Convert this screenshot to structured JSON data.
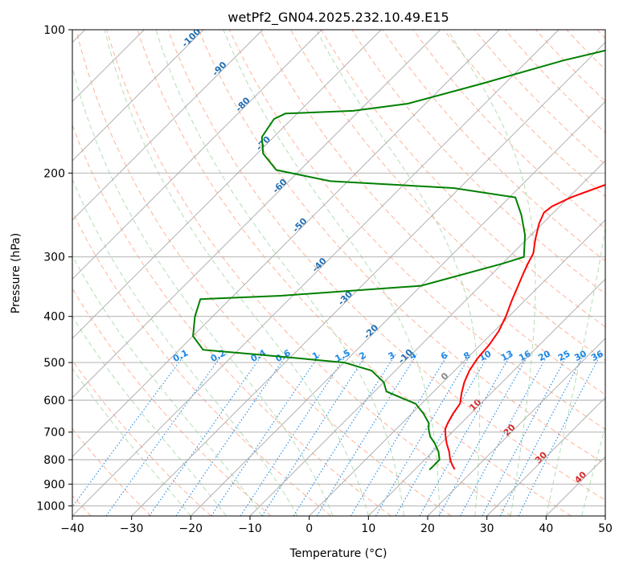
{
  "chart_data": {
    "type": "line",
    "title": "wetPf2_GN04.2025.232.10.49.E15",
    "xlabel": "Temperature (°C)",
    "ylabel": "Pressure (hPa)",
    "xlim": [
      -40,
      50
    ],
    "ylim": [
      1050,
      100
    ],
    "y_scale": "log",
    "x_ticks": [
      -40,
      -30,
      -20,
      -10,
      0,
      10,
      20,
      30,
      40,
      50
    ],
    "x_tick_labels": [
      "−40",
      "−30",
      "−20",
      "−10",
      "0",
      "10",
      "20",
      "30",
      "40",
      "50"
    ],
    "y_ticks": [
      100,
      200,
      300,
      400,
      500,
      600,
      700,
      800,
      900,
      1000
    ],
    "y_tick_labels": [
      "100",
      "200",
      "300",
      "400",
      "500",
      "600",
      "700",
      "800",
      "900",
      "1000"
    ],
    "grid": true,
    "skew": true,
    "series": [
      {
        "color": "#ff0000",
        "points": [
          [
            16.7,
            838
          ],
          [
            15.5,
            820
          ],
          [
            14.3,
            800
          ],
          [
            12.8,
            770
          ],
          [
            11.0,
            740
          ],
          [
            9.6,
            715
          ],
          [
            8.3,
            690
          ],
          [
            7.7,
            670
          ],
          [
            7.0,
            640
          ],
          [
            6.5,
            610
          ],
          [
            5.0,
            580
          ],
          [
            3.6,
            550
          ],
          [
            2.5,
            520
          ],
          [
            1.8,
            490
          ],
          [
            1.5,
            460
          ],
          [
            0.8,
            430
          ],
          [
            -0.5,
            400
          ],
          [
            -2.2,
            370
          ],
          [
            -3.6,
            345
          ],
          [
            -4.8,
            325
          ],
          [
            -5.7,
            310
          ],
          [
            -6.5,
            295
          ],
          [
            -8.6,
            275
          ],
          [
            -10.6,
            255
          ],
          [
            -11.6,
            242
          ],
          [
            -11.3,
            235
          ],
          [
            -9.6,
            225
          ],
          [
            -6.3,
            213
          ],
          [
            -3.3,
            204
          ],
          [
            -0.9,
            197
          ],
          [
            -0.5,
            186
          ],
          [
            -0.7,
            172
          ],
          [
            -1.6,
            160
          ],
          [
            -2.8,
            150
          ],
          [
            -4.2,
            142
          ],
          [
            -4.5,
            134
          ],
          [
            -5.5,
            125
          ],
          [
            -6.3,
            116
          ],
          [
            -7.8,
            108
          ],
          [
            -9.0,
            100
          ]
        ]
      },
      {
        "color": "#008000",
        "points": [
          [
            12.5,
            840
          ],
          [
            12.5,
            820
          ],
          [
            12.5,
            800
          ],
          [
            11.0,
            770
          ],
          [
            9.0,
            740
          ],
          [
            7.0,
            715
          ],
          [
            5.5,
            690
          ],
          [
            4.5,
            670
          ],
          [
            2.0,
            640
          ],
          [
            -1.0,
            610
          ],
          [
            -5.0,
            590
          ],
          [
            -8.0,
            575
          ],
          [
            -10.0,
            550
          ],
          [
            -14.0,
            520
          ],
          [
            -20.0,
            500
          ],
          [
            -35.0,
            482
          ],
          [
            -46.0,
            470
          ],
          [
            -50.0,
            440
          ],
          [
            -53.0,
            400
          ],
          [
            -55.0,
            368
          ],
          [
            -42.0,
            362
          ],
          [
            -20.0,
            345
          ],
          [
            -10.0,
            310
          ],
          [
            -7.5,
            300
          ],
          [
            -11.0,
            270
          ],
          [
            -15.0,
            245
          ],
          [
            -19.0,
            225
          ],
          [
            -31.0,
            215
          ],
          [
            -53.0,
            208
          ],
          [
            -64.0,
            197
          ],
          [
            -69.0,
            182
          ],
          [
            -72.0,
            168
          ],
          [
            -73.0,
            154
          ],
          [
            -72.0,
            150
          ],
          [
            -61.0,
            148
          ],
          [
            -53.0,
            143
          ],
          [
            -44.0,
            130
          ],
          [
            -34.0,
            116
          ],
          [
            -26.0,
            108
          ],
          [
            -19.0,
            100
          ]
        ]
      }
    ],
    "annotations": {
      "dry_adiabats": [
        "-100",
        "-90",
        "-80",
        "-70",
        "-60",
        "-50",
        "-40",
        "-30",
        "-20",
        "-10"
      ],
      "mixing_ratios": [
        "0.1",
        "0.2",
        "0.4",
        "0.6",
        "1",
        "1.5",
        "2",
        "3",
        "4",
        "6",
        "8",
        "10",
        "13",
        "16",
        "20",
        "25",
        "30",
        "36"
      ],
      "moist_adiabats": [
        "0",
        "10",
        "20",
        "30",
        "40"
      ]
    }
  }
}
